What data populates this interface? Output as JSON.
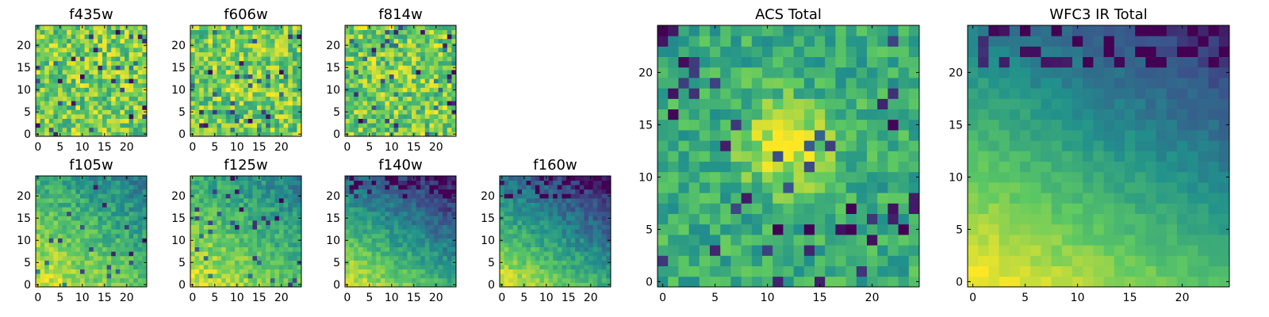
{
  "chart_data": {
    "type": "heatmap",
    "colormap": [
      "#440154",
      "#3b528b",
      "#21918c",
      "#5ec962",
      "#fde725"
    ],
    "grid_size": 25,
    "panels": [
      {
        "id": "f435w",
        "title": "f435w",
        "x_ticks": [
          "0",
          "5",
          "10",
          "15",
          "20"
        ],
        "y_ticks": [
          "0",
          "5",
          "10",
          "15",
          "20"
        ],
        "xlim": [
          0,
          25
        ],
        "ylim": [
          0,
          25
        ],
        "pattern": "noise_bright"
      },
      {
        "id": "f606w",
        "title": "f606w",
        "x_ticks": [
          "0",
          "5",
          "10",
          "15",
          "20"
        ],
        "y_ticks": [
          "0",
          "5",
          "10",
          "15",
          "20"
        ],
        "xlim": [
          0,
          25
        ],
        "ylim": [
          0,
          25
        ],
        "pattern": "noise_bright"
      },
      {
        "id": "f814w",
        "title": "f814w",
        "x_ticks": [
          "0",
          "5",
          "10",
          "15",
          "20"
        ],
        "y_ticks": [
          "0",
          "5",
          "10",
          "15",
          "20"
        ],
        "xlim": [
          0,
          25
        ],
        "ylim": [
          0,
          25
        ],
        "pattern": "noise_bright"
      },
      {
        "id": "f105w",
        "title": "f105w",
        "x_ticks": [
          "0",
          "5",
          "10",
          "15",
          "20"
        ],
        "y_ticks": [
          "0",
          "5",
          "10",
          "15",
          "20"
        ],
        "xlim": [
          0,
          25
        ],
        "ylim": [
          0,
          25
        ],
        "pattern": "gradient_bottom_left"
      },
      {
        "id": "f125w",
        "title": "f125w",
        "x_ticks": [
          "0",
          "5",
          "10",
          "15",
          "20"
        ],
        "y_ticks": [
          "0",
          "5",
          "10",
          "15",
          "20"
        ],
        "xlim": [
          0,
          25
        ],
        "ylim": [
          0,
          25
        ],
        "pattern": "gradient_bottom_left"
      },
      {
        "id": "f140w",
        "title": "f140w",
        "x_ticks": [
          "0",
          "5",
          "10",
          "15",
          "20"
        ],
        "y_ticks": [
          "0",
          "5",
          "10",
          "15",
          "20"
        ],
        "xlim": [
          0,
          25
        ],
        "ylim": [
          0,
          25
        ],
        "pattern": "gradient_bottom_left_dark_top"
      },
      {
        "id": "f160w",
        "title": "f160w",
        "x_ticks": [
          "0",
          "5",
          "10",
          "15",
          "20"
        ],
        "y_ticks": [
          "0",
          "5",
          "10",
          "15",
          "20"
        ],
        "xlim": [
          0,
          25
        ],
        "ylim": [
          0,
          25
        ],
        "pattern": "gradient_bottom_left_dark_top"
      },
      {
        "id": "acs_total",
        "title": "ACS Total",
        "x_ticks": [
          "0",
          "5",
          "10",
          "15",
          "20"
        ],
        "y_ticks": [
          "0",
          "5",
          "10",
          "15",
          "20"
        ],
        "xlim": [
          0,
          25
        ],
        "ylim": [
          0,
          25
        ],
        "pattern": "noise_center_peak"
      },
      {
        "id": "wfc3_ir_total",
        "title": "WFC3 IR Total",
        "x_ticks": [
          "0",
          "5",
          "10",
          "15",
          "20"
        ],
        "y_ticks": [
          "0",
          "5",
          "10",
          "15",
          "20"
        ],
        "xlim": [
          0,
          25
        ],
        "ylim": [
          0,
          25
        ],
        "pattern": "smooth_gradient_bottom_left"
      }
    ]
  }
}
